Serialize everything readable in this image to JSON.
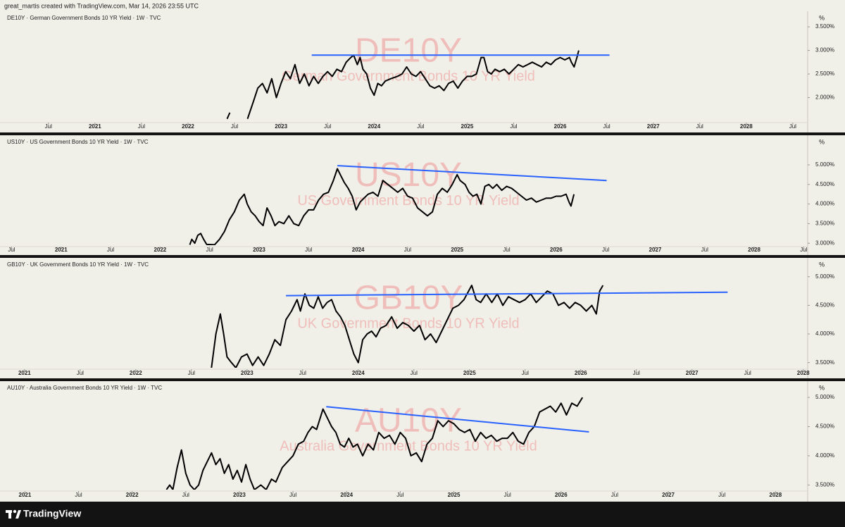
{
  "header": "great_martis created with TradingView.com, Mar 14, 2026 23:55 UTC",
  "footer": {
    "brand": "TradingView"
  },
  "chart_data": [
    {
      "type": "line",
      "title": "DE10Y · German Government Bonds 10 YR Yield · 1W · TVC",
      "symbol": "DE10Y",
      "description": "German Government Bonds 10 YR Yield",
      "unit": "%",
      "color": "#000000",
      "x": [
        2022.42,
        2022.45,
        2022.55,
        2022.64,
        2022.7,
        2022.75,
        2022.8,
        2022.85,
        2022.9,
        2022.95,
        2023.0,
        2023.05,
        2023.1,
        2023.15,
        2023.2,
        2023.25,
        2023.3,
        2023.35,
        2023.4,
        2023.45,
        2023.5,
        2023.55,
        2023.6,
        2023.65,
        2023.7,
        2023.75,
        2023.78,
        2023.82,
        2023.85,
        2023.88,
        2023.92,
        2023.96,
        2024.0,
        2024.04,
        2024.08,
        2024.12,
        2024.18,
        2024.25,
        2024.3,
        2024.35,
        2024.4,
        2024.45,
        2024.5,
        2024.55,
        2024.6,
        2024.65,
        2024.7,
        2024.75,
        2024.8,
        2024.85,
        2024.9,
        2024.95,
        2025.0,
        2025.05,
        2025.1,
        2025.15,
        2025.18,
        2025.22,
        2025.26,
        2025.3,
        2025.35,
        2025.4,
        2025.45,
        2025.5,
        2025.55,
        2025.6,
        2025.65,
        2025.7,
        2025.75,
        2025.8,
        2025.85,
        2025.9,
        2025.95,
        2026.0,
        2026.05,
        2026.1,
        2026.12,
        2026.15,
        2026.18,
        2026.2
      ],
      "values": [
        1.55,
        1.68,
        null,
        1.55,
        1.9,
        2.2,
        2.3,
        2.1,
        2.4,
        2.0,
        2.3,
        2.55,
        2.4,
        2.7,
        2.3,
        2.5,
        2.25,
        2.45,
        2.3,
        2.45,
        2.55,
        2.45,
        2.6,
        2.55,
        2.75,
        2.85,
        2.9,
        2.7,
        2.85,
        2.6,
        2.5,
        2.2,
        2.05,
        2.3,
        2.25,
        2.35,
        2.4,
        2.45,
        2.5,
        2.65,
        2.5,
        2.45,
        2.55,
        2.4,
        2.25,
        2.2,
        2.25,
        2.15,
        2.3,
        2.35,
        2.2,
        2.35,
        2.45,
        2.45,
        2.5,
        2.85,
        2.85,
        2.55,
        2.5,
        2.6,
        2.55,
        2.6,
        2.5,
        2.6,
        2.7,
        2.65,
        2.7,
        2.75,
        2.7,
        2.65,
        2.75,
        2.7,
        2.8,
        2.85,
        2.8,
        2.85,
        2.75,
        2.65,
        2.85,
        3.0
      ],
      "trendline": {
        "color": "#2962ff",
        "x": [
          2023.33,
          2026.53
        ],
        "values": [
          2.9,
          2.9
        ]
      },
      "xlim": [
        2020.04,
        2028.66
      ],
      "ylim": [
        1.5,
        3.8
      ],
      "xticks": [
        {
          "value": 2020.5,
          "label": "Jul"
        },
        2021,
        {
          "value": 2021.5,
          "label": "Jul"
        },
        2022,
        {
          "value": 2022.5,
          "label": "Jul"
        },
        2023,
        {
          "value": 2023.5,
          "label": "Jul"
        },
        2024,
        {
          "value": 2024.5,
          "label": "Jul"
        },
        2025,
        {
          "value": 2025.5,
          "label": "Jul"
        },
        2026,
        {
          "value": 2026.5,
          "label": "Jul"
        },
        2027,
        {
          "value": 2027.5,
          "label": "Jul"
        },
        2028,
        {
          "value": 2028.5,
          "label": "Jul"
        }
      ],
      "yticks": [
        {
          "value": 2.0,
          "label": "2.000%"
        },
        {
          "value": 2.5,
          "label": "2.500%"
        },
        {
          "value": 3.0,
          "label": "3.000%"
        },
        {
          "value": 3.5,
          "label": "3.500%"
        }
      ]
    },
    {
      "type": "line",
      "title": "US10Y · US Government Bonds 10 YR Yield · 1W · TVC",
      "symbol": "US10Y",
      "description": "US Government Bonds 10 YR Yield",
      "unit": "%",
      "color": "#000000",
      "x": [
        2022.3,
        2022.32,
        2022.35,
        2022.38,
        2022.41,
        2022.44,
        2022.47,
        2022.55,
        2022.6,
        2022.65,
        2022.7,
        2022.75,
        2022.8,
        2022.85,
        2022.88,
        2022.92,
        2022.96,
        2023.0,
        2023.04,
        2023.08,
        2023.12,
        2023.16,
        2023.2,
        2023.25,
        2023.3,
        2023.35,
        2023.4,
        2023.45,
        2023.5,
        2023.55,
        2023.6,
        2023.65,
        2023.7,
        2023.75,
        2023.79,
        2023.82,
        2023.86,
        2023.9,
        2023.94,
        2023.98,
        2024.02,
        2024.06,
        2024.1,
        2024.15,
        2024.2,
        2024.25,
        2024.3,
        2024.35,
        2024.4,
        2024.45,
        2024.5,
        2024.55,
        2024.6,
        2024.65,
        2024.7,
        2024.75,
        2024.8,
        2024.85,
        2024.9,
        2024.95,
        2025.0,
        2025.03,
        2025.08,
        2025.12,
        2025.16,
        2025.2,
        2025.24,
        2025.28,
        2025.32,
        2025.36,
        2025.4,
        2025.45,
        2025.5,
        2025.55,
        2025.6,
        2025.65,
        2025.7,
        2025.75,
        2025.8,
        2025.85,
        2025.9,
        2025.95,
        2026.0,
        2026.05,
        2026.1,
        2026.13,
        2026.15,
        2026.18
      ],
      "values": [
        2.96,
        3.1,
        3.0,
        3.2,
        3.25,
        3.1,
        2.97,
        2.96,
        3.1,
        3.3,
        3.6,
        3.8,
        4.1,
        4.25,
        4.0,
        3.8,
        3.7,
        3.55,
        3.45,
        3.9,
        3.7,
        3.45,
        3.55,
        3.5,
        3.7,
        3.5,
        3.45,
        3.7,
        3.85,
        3.85,
        4.1,
        4.25,
        4.3,
        4.6,
        4.9,
        4.75,
        4.55,
        4.4,
        4.2,
        3.85,
        4.05,
        4.15,
        4.25,
        4.3,
        4.2,
        4.6,
        4.5,
        4.4,
        4.3,
        4.4,
        4.2,
        4.15,
        3.9,
        3.8,
        3.7,
        3.8,
        4.25,
        4.4,
        4.3,
        4.5,
        4.75,
        4.6,
        4.5,
        4.3,
        4.2,
        4.25,
        4.0,
        4.45,
        4.5,
        4.4,
        4.5,
        4.35,
        4.45,
        4.4,
        4.3,
        4.2,
        4.1,
        4.15,
        4.05,
        4.1,
        4.15,
        4.15,
        4.2,
        4.2,
        4.25,
        4.05,
        3.95,
        4.25
      ],
      "trendline": {
        "color": "#2962ff",
        "x": [
          2023.79,
          2026.51
        ],
        "values": [
          4.98,
          4.6
        ]
      },
      "xlim": [
        2020.44,
        2028.54
      ],
      "ylim": [
        2.95,
        5.7
      ],
      "xticks": [
        {
          "value": 2020.5,
          "label": "Jul"
        },
        2021,
        {
          "value": 2021.5,
          "label": "Jul"
        },
        2022,
        {
          "value": 2022.5,
          "label": "Jul"
        },
        2023,
        {
          "value": 2023.5,
          "label": "Jul"
        },
        2024,
        {
          "value": 2024.5,
          "label": "Jul"
        },
        2025,
        {
          "value": 2025.5,
          "label": "Jul"
        },
        2026,
        {
          "value": 2026.5,
          "label": "Jul"
        },
        2027,
        {
          "value": 2027.5,
          "label": "Jul"
        },
        2028,
        {
          "value": 2028.5,
          "label": "Jul"
        }
      ],
      "yticks": [
        {
          "value": 3.0,
          "label": "3.000%"
        },
        {
          "value": 3.5,
          "label": "3.500%"
        },
        {
          "value": 4.0,
          "label": "4.000%"
        },
        {
          "value": 4.5,
          "label": "4.500%"
        },
        {
          "value": 5.0,
          "label": "5.000%"
        }
      ]
    },
    {
      "type": "line",
      "title": "GB10Y · UK Government Bonds 10 YR Yield · 1W · TVC",
      "symbol": "GB10Y",
      "description": "UK Government Bonds 10 YR Yield",
      "unit": "%",
      "color": "#000000",
      "x": [
        2022.68,
        2022.72,
        2022.76,
        2022.79,
        2022.82,
        2022.86,
        2022.9,
        2022.95,
        2023.0,
        2023.05,
        2023.1,
        2023.15,
        2023.2,
        2023.25,
        2023.3,
        2023.35,
        2023.4,
        2023.45,
        2023.48,
        2023.52,
        2023.56,
        2023.6,
        2023.64,
        2023.68,
        2023.72,
        2023.76,
        2023.8,
        2023.84,
        2023.88,
        2023.92,
        2023.96,
        2024.0,
        2024.04,
        2024.08,
        2024.12,
        2024.16,
        2024.2,
        2024.25,
        2024.3,
        2024.35,
        2024.4,
        2024.45,
        2024.5,
        2024.55,
        2024.6,
        2024.65,
        2024.7,
        2024.75,
        2024.8,
        2024.85,
        2024.9,
        2024.95,
        2025.02,
        2025.06,
        2025.1,
        2025.15,
        2025.2,
        2025.25,
        2025.3,
        2025.35,
        2025.4,
        2025.45,
        2025.5,
        2025.55,
        2025.6,
        2025.65,
        2025.7,
        2025.75,
        2025.8,
        2025.85,
        2025.9,
        2025.95,
        2026.0,
        2026.05,
        2026.1,
        2026.14,
        2026.17,
        2026.2
      ],
      "values": [
        3.41,
        4.0,
        4.35,
        4.0,
        3.6,
        3.5,
        3.41,
        3.6,
        3.65,
        3.45,
        3.6,
        3.45,
        3.65,
        3.9,
        3.8,
        4.25,
        4.4,
        4.6,
        4.4,
        4.7,
        4.5,
        4.45,
        4.65,
        4.45,
        4.55,
        4.6,
        4.4,
        4.3,
        4.15,
        3.9,
        3.65,
        3.5,
        3.9,
        4.0,
        4.05,
        3.95,
        4.1,
        4.15,
        4.3,
        4.1,
        4.2,
        4.15,
        4.05,
        4.15,
        3.9,
        4.0,
        3.85,
        4.05,
        4.25,
        4.45,
        4.5,
        4.6,
        4.85,
        4.6,
        4.55,
        4.7,
        4.55,
        4.7,
        4.5,
        4.65,
        4.6,
        4.55,
        4.6,
        4.7,
        4.55,
        4.65,
        4.75,
        4.7,
        4.5,
        4.55,
        4.45,
        4.55,
        4.5,
        4.4,
        4.5,
        4.35,
        4.75,
        4.85
      ],
      "trendline": {
        "color": "#2962ff",
        "x": [
          2023.35,
          2027.32
        ],
        "values": [
          4.67,
          4.73
        ]
      },
      "xlim": [
        2020.83,
        2028.04
      ],
      "ylim": [
        3.41,
        5.28
      ],
      "xticks": [
        2021,
        {
          "value": 2021.5,
          "label": "Jul"
        },
        2022,
        {
          "value": 2022.5,
          "label": "Jul"
        },
        2023,
        {
          "value": 2023.5,
          "label": "Jul"
        },
        2024,
        {
          "value": 2024.5,
          "label": "Jul"
        },
        2025,
        {
          "value": 2025.5,
          "label": "Jul"
        },
        2026,
        {
          "value": 2026.5,
          "label": "Jul"
        },
        2027,
        {
          "value": 2027.5,
          "label": "Jul"
        },
        2028
      ],
      "yticks": [
        {
          "value": 3.5,
          "label": "3.500%"
        },
        {
          "value": 4.0,
          "label": "4.000%"
        },
        {
          "value": 4.5,
          "label": "4.500%"
        },
        {
          "value": 5.0,
          "label": "5.000%"
        }
      ]
    },
    {
      "type": "line",
      "title": "AU10Y · Australia Government Bonds 10 YR Yield · 1W · TVC",
      "symbol": "AU10Y",
      "description": "Australia Government Bonds 10 YR Yield",
      "unit": "%",
      "color": "#000000",
      "x": [
        2022.32,
        2022.35,
        2022.38,
        2022.42,
        2022.46,
        2022.5,
        2022.54,
        2022.58,
        2022.62,
        2022.66,
        2022.7,
        2022.74,
        2022.78,
        2022.82,
        2022.86,
        2022.9,
        2022.94,
        2022.98,
        2023.02,
        2023.06,
        2023.1,
        2023.14,
        2023.2,
        2023.25,
        2023.3,
        2023.34,
        2023.4,
        2023.45,
        2023.5,
        2023.55,
        2023.6,
        2023.64,
        2023.68,
        2023.72,
        2023.78,
        2023.82,
        2023.86,
        2023.9,
        2023.94,
        2023.98,
        2024.02,
        2024.06,
        2024.1,
        2024.15,
        2024.2,
        2024.25,
        2024.3,
        2024.35,
        2024.4,
        2024.45,
        2024.5,
        2024.55,
        2024.6,
        2024.65,
        2024.7,
        2024.75,
        2024.8,
        2024.85,
        2024.9,
        2024.95,
        2025.0,
        2025.05,
        2025.1,
        2025.15,
        2025.2,
        2025.25,
        2025.3,
        2025.35,
        2025.4,
        2025.45,
        2025.5,
        2025.55,
        2025.6,
        2025.65,
        2025.7,
        2025.75,
        2025.8,
        2025.85,
        2025.9,
        2025.95,
        2026.0,
        2026.05,
        2026.1,
        2026.15,
        2026.2
      ],
      "values": [
        3.42,
        3.5,
        3.42,
        3.8,
        4.1,
        3.7,
        3.5,
        3.42,
        3.5,
        3.75,
        3.9,
        4.05,
        3.85,
        3.95,
        3.7,
        3.85,
        3.6,
        3.75,
        3.55,
        3.85,
        3.6,
        3.42,
        3.5,
        3.42,
        3.6,
        3.55,
        3.8,
        3.9,
        4.0,
        4.2,
        4.25,
        4.4,
        4.5,
        4.45,
        4.8,
        4.65,
        4.5,
        4.4,
        4.2,
        4.15,
        4.3,
        4.15,
        4.2,
        4.0,
        4.2,
        4.1,
        4.4,
        4.3,
        4.35,
        4.2,
        4.4,
        4.3,
        4.0,
        4.05,
        3.9,
        4.2,
        4.3,
        4.6,
        4.5,
        4.6,
        4.55,
        4.45,
        4.4,
        4.45,
        4.25,
        4.4,
        4.3,
        4.35,
        4.25,
        4.3,
        4.3,
        4.4,
        4.25,
        4.2,
        4.4,
        4.5,
        4.75,
        4.8,
        4.85,
        4.75,
        4.9,
        4.7,
        4.9,
        4.85,
        5.0
      ],
      "trendline": {
        "color": "#2962ff",
        "x": [
          2023.81,
          2026.26
        ],
        "values": [
          4.84,
          4.41
        ]
      },
      "xlim": [
        2020.82,
        2028.3
      ],
      "ylim": [
        3.42,
        5.23
      ],
      "xticks": [
        2021,
        {
          "value": 2021.5,
          "label": "Jul"
        },
        2022,
        {
          "value": 2022.5,
          "label": "Jul"
        },
        2023,
        {
          "value": 2023.5,
          "label": "Jul"
        },
        2024,
        {
          "value": 2024.5,
          "label": "Jul"
        },
        2025,
        {
          "value": 2025.5,
          "label": "Jul"
        },
        2026,
        {
          "value": 2026.5,
          "label": "Jul"
        },
        2027,
        {
          "value": 2027.5,
          "label": "Jul"
        },
        2028
      ],
      "yticks": [
        {
          "value": 3.5,
          "label": "3.500%"
        },
        {
          "value": 4.0,
          "label": "4.000%"
        },
        {
          "value": 4.5,
          "label": "4.500%"
        },
        {
          "value": 5.0,
          "label": "5.000%"
        }
      ]
    }
  ]
}
